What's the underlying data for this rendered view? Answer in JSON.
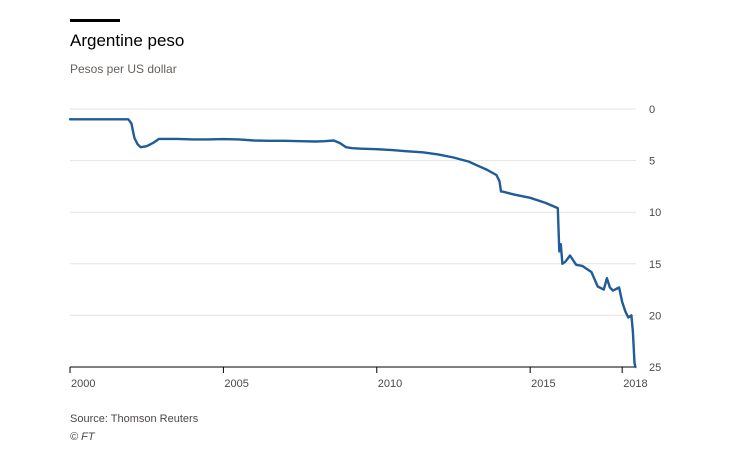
{
  "chart_data": {
    "type": "line",
    "title": "Argentine peso",
    "subtitle": "Pesos per US dollar",
    "ylim": [
      0,
      25
    ],
    "y_inverted": true,
    "y_axis_side": "right",
    "xlim": [
      2000,
      2018.45
    ],
    "x_ticks": [
      2000,
      2005,
      2010,
      2015,
      2018
    ],
    "y_ticks": [
      0,
      5,
      10,
      15,
      20,
      25
    ],
    "grid": "horizontal",
    "legend": "none",
    "line_color": "#1f5c99",
    "series": [
      {
        "x": [
          2000.0,
          2001.9,
          2002.0,
          2002.1,
          2002.2,
          2002.3,
          2002.5,
          2002.7,
          2002.9,
          2003.2,
          2003.5,
          2004.0,
          2004.5,
          2005.0,
          2005.5,
          2006.0,
          2006.5,
          2007.0,
          2007.5,
          2008.0,
          2008.3,
          2008.6,
          2008.8,
          2009.0,
          2009.2,
          2009.5,
          2010.0,
          2010.5,
          2011.0,
          2011.5,
          2012.0,
          2012.5,
          2013.0,
          2013.3,
          2013.6,
          2013.9,
          2014.0,
          2014.05,
          2014.1,
          2014.5,
          2015.0,
          2015.5,
          2015.9,
          2015.95,
          2016.0,
          2016.05,
          2016.15,
          2016.3,
          2016.5,
          2016.7,
          2017.0,
          2017.2,
          2017.4,
          2017.5,
          2017.6,
          2017.7,
          2017.9,
          2018.0,
          2018.1,
          2018.2,
          2018.3,
          2018.35,
          2018.4,
          2018.43
        ],
        "y": [
          1.0,
          1.0,
          1.4,
          2.8,
          3.4,
          3.7,
          3.6,
          3.3,
          2.9,
          2.9,
          2.9,
          2.95,
          2.95,
          2.92,
          2.95,
          3.05,
          3.08,
          3.08,
          3.12,
          3.15,
          3.12,
          3.05,
          3.3,
          3.7,
          3.8,
          3.85,
          3.9,
          3.98,
          4.1,
          4.2,
          4.4,
          4.7,
          5.1,
          5.5,
          5.9,
          6.4,
          7.0,
          8.0,
          8.0,
          8.3,
          8.6,
          9.1,
          9.6,
          13.8,
          13.1,
          15.0,
          14.8,
          14.2,
          15.1,
          15.2,
          15.8,
          17.2,
          17.5,
          16.4,
          17.3,
          17.6,
          17.3,
          18.7,
          19.6,
          20.2,
          20.0,
          21.6,
          24.6,
          25.0
        ]
      }
    ]
  },
  "footer": {
    "source": "Source: Thomson Reuters",
    "credit": "© FT"
  }
}
